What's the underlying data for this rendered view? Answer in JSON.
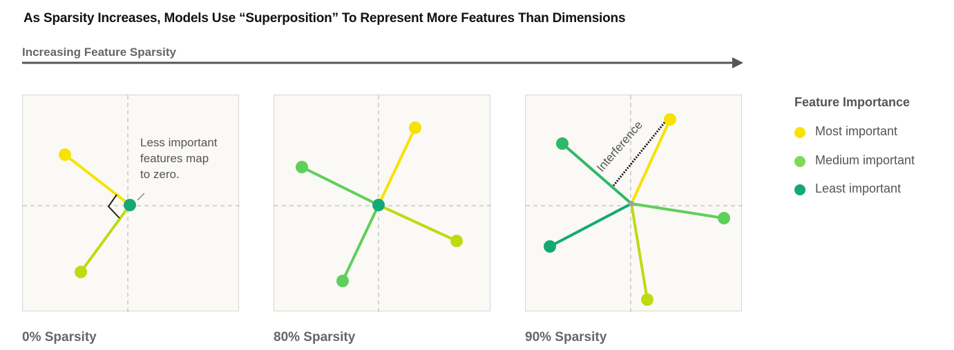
{
  "title": "As Sparsity Increases, Models Use “Superposition” To Represent More Features Than Dimensions",
  "axis_label": "Increasing Feature Sparsity",
  "colors": {
    "most": "#f8e200",
    "medium_bright": "#bcdc11",
    "medium": "#5fcf5a",
    "least": "#14a877",
    "arrow": "#555555",
    "dashed_axis": "#c8c8c8"
  },
  "panels": [
    {
      "label": "0% Sparsity",
      "annotation": [
        "Less important",
        "features map",
        "to zero."
      ]
    },
    {
      "label": "80% Sparsity"
    },
    {
      "label": "90% Sparsity",
      "annotation": "Interference"
    }
  ],
  "legend": {
    "title": "Feature Importance",
    "items": [
      {
        "label": "Most important",
        "color": "#f8e200"
      },
      {
        "label": "Medium important",
        "color": "#7ed957"
      },
      {
        "label": "Least important",
        "color": "#14a877"
      }
    ]
  }
}
